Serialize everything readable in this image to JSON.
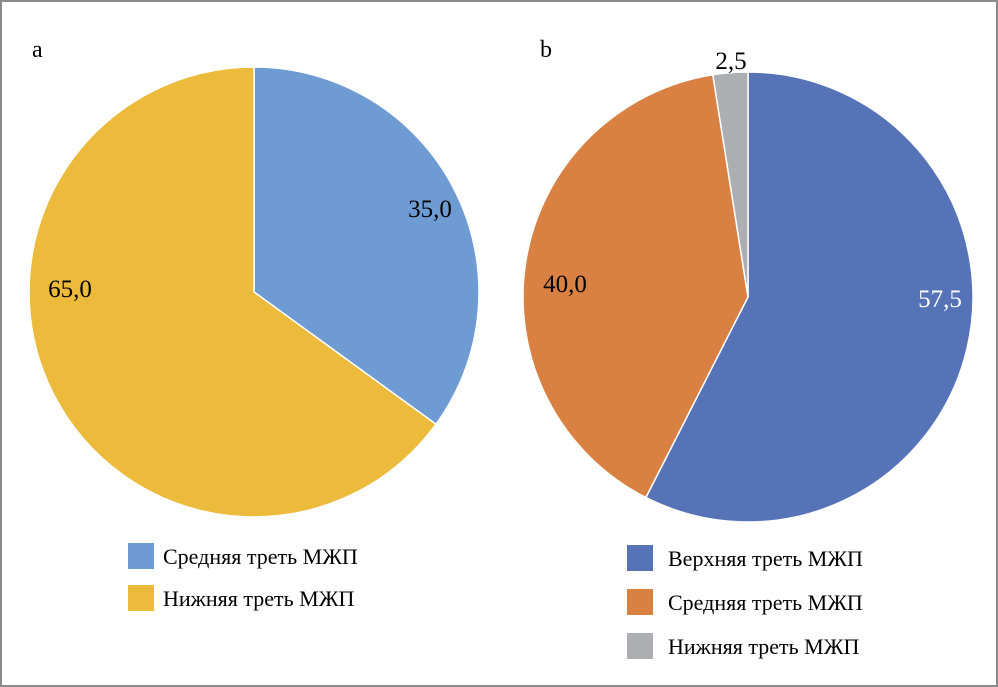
{
  "chart_data": [
    {
      "type": "pie",
      "panel_label": "a",
      "slices": [
        {
          "label": "Средняя треть МЖП",
          "value": 35.0,
          "display": "35,0",
          "color": "#6e9bd2"
        },
        {
          "label": "Нижняя треть МЖП",
          "value": 65.0,
          "display": "65,0",
          "color": "#ecbb3c"
        }
      ],
      "legend_position": "bottom"
    },
    {
      "type": "pie",
      "panel_label": "b",
      "slices": [
        {
          "label": "Верхняя треть МЖП",
          "value": 57.5,
          "display": "57,5",
          "color": "#5673b8"
        },
        {
          "label": "Средняя треть МЖП",
          "value": 40.0,
          "display": "40,0",
          "color": "#d98043"
        },
        {
          "label": "Нижняя треть МЖП",
          "value": 2.5,
          "display": "2,5",
          "color": "#adaeb1"
        }
      ],
      "legend_position": "bottom"
    }
  ]
}
